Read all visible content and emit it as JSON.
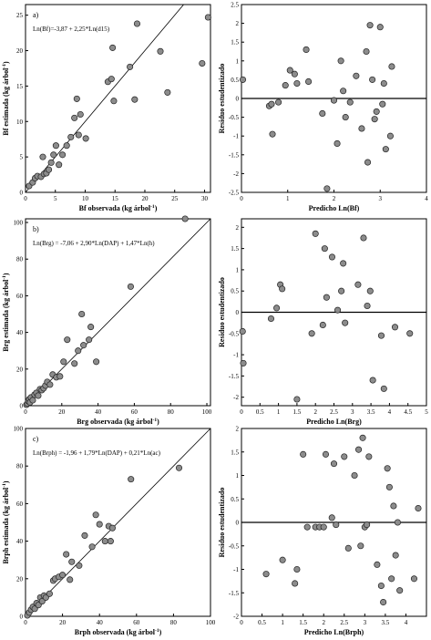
{
  "chart_data": [
    {
      "type": "scatter",
      "panel": "a)",
      "equation": "Ln(Bf)=-3,87 + 2,25*Ln(d15)",
      "xlabel": "Bf observada (kg árbol",
      "ylabel": "Bf estimada (kg árbol",
      "unit_exp": "-1",
      "xlim": [
        0,
        31
      ],
      "ylim": [
        0,
        26.5
      ],
      "xticks": [
        0,
        5,
        10,
        15,
        20,
        25,
        30
      ],
      "yticks": [
        0,
        5,
        10,
        15,
        20,
        25
      ],
      "identity_line": true,
      "points": [
        [
          0.6,
          0.9
        ],
        [
          1.2,
          1.4
        ],
        [
          1.6,
          2.0
        ],
        [
          2.0,
          2.3
        ],
        [
          2.6,
          2.2
        ],
        [
          2.9,
          5.0
        ],
        [
          3.1,
          2.6
        ],
        [
          3.5,
          2.7
        ],
        [
          3.9,
          3.2
        ],
        [
          4.3,
          4.2
        ],
        [
          4.7,
          5.3
        ],
        [
          5.1,
          6.6
        ],
        [
          5.6,
          3.9
        ],
        [
          6.2,
          5.3
        ],
        [
          6.9,
          6.6
        ],
        [
          7.6,
          7.8
        ],
        [
          8.2,
          10.5
        ],
        [
          8.6,
          13.2
        ],
        [
          8.9,
          8.1
        ],
        [
          9.2,
          11.0
        ],
        [
          10.1,
          7.6
        ],
        [
          13.8,
          15.6
        ],
        [
          14.4,
          16.0
        ],
        [
          14.6,
          20.4
        ],
        [
          14.8,
          12.9
        ],
        [
          17.5,
          17.7
        ],
        [
          18.3,
          13.1
        ],
        [
          18.7,
          23.8
        ],
        [
          22.6,
          19.9
        ],
        [
          23.8,
          14.1
        ],
        [
          29.6,
          18.2
        ],
        [
          30.6,
          24.7
        ]
      ]
    },
    {
      "type": "scatter",
      "xlabel": "Predicho Ln(Bf)",
      "ylabel": "Residuo estudentizado",
      "xlim": [
        0,
        4
      ],
      "ylim": [
        -2.5,
        2.5
      ],
      "xticks": [
        0,
        1,
        2,
        3,
        4
      ],
      "yticks": [
        -2.5,
        -2,
        -1.5,
        -1,
        -0.5,
        0,
        0.5,
        1,
        1.5,
        2,
        2.5
      ],
      "zero_line": true,
      "points": [
        [
          0.03,
          0.5
        ],
        [
          0.6,
          -0.2
        ],
        [
          0.65,
          -0.15
        ],
        [
          0.67,
          -0.95
        ],
        [
          0.8,
          -0.1
        ],
        [
          0.95,
          0.35
        ],
        [
          1.05,
          0.75
        ],
        [
          1.15,
          0.65
        ],
        [
          1.2,
          0.4
        ],
        [
          1.4,
          1.3
        ],
        [
          1.45,
          0.45
        ],
        [
          1.75,
          -0.4
        ],
        [
          1.85,
          -2.4
        ],
        [
          2.0,
          -0.05
        ],
        [
          2.07,
          -1.2
        ],
        [
          2.15,
          1.0
        ],
        [
          2.2,
          0.2
        ],
        [
          2.25,
          -0.5
        ],
        [
          2.35,
          -0.1
        ],
        [
          2.48,
          0.6
        ],
        [
          2.6,
          -0.8
        ],
        [
          2.7,
          1.25
        ],
        [
          2.73,
          -1.7
        ],
        [
          2.78,
          1.95
        ],
        [
          2.83,
          0.5
        ],
        [
          2.88,
          -0.55
        ],
        [
          2.92,
          -0.35
        ],
        [
          3.0,
          1.9
        ],
        [
          3.05,
          -0.15
        ],
        [
          3.08,
          0.4
        ],
        [
          3.12,
          -1.35
        ],
        [
          3.22,
          -1.0
        ],
        [
          3.25,
          0.85
        ]
      ]
    },
    {
      "type": "scatter",
      "panel": "b)",
      "equation": "Ln(Brg) = -7,06 + 2,90*Ln(DAP) + 1,47*Ln(h)",
      "xlabel": "Brg observada (kg árbol",
      "ylabel": "Brg estimada (kg árbol",
      "unit_exp": "-1",
      "xlim": [
        0,
        102
      ],
      "ylim": [
        0,
        102
      ],
      "xticks": [
        0,
        20,
        40,
        60,
        80,
        100
      ],
      "yticks": [
        0,
        20,
        40,
        60,
        80,
        100
      ],
      "identity_line": true,
      "points": [
        [
          0.5,
          0.5
        ],
        [
          1.0,
          1.2
        ],
        [
          1.5,
          2.5
        ],
        [
          2.0,
          3.5
        ],
        [
          2.5,
          1.8
        ],
        [
          3.0,
          4.5
        ],
        [
          4.0,
          3.0
        ],
        [
          5.0,
          6.0
        ],
        [
          6.0,
          7.0
        ],
        [
          7.0,
          5.5
        ],
        [
          8.0,
          9.0
        ],
        [
          9.0,
          8.5
        ],
        [
          10.0,
          9.5
        ],
        [
          11.0,
          11.0
        ],
        [
          12.0,
          13.0
        ],
        [
          13.5,
          11.5
        ],
        [
          15.0,
          17.0
        ],
        [
          17.0,
          15.5
        ],
        [
          19.0,
          16.0
        ],
        [
          21.0,
          24.0
        ],
        [
          23.0,
          36.0
        ],
        [
          27.0,
          23.0
        ],
        [
          29.0,
          30.0
        ],
        [
          31.0,
          50.0
        ],
        [
          32.0,
          33.0
        ],
        [
          35.0,
          36.0
        ],
        [
          36.0,
          43.0
        ],
        [
          39.0,
          24.0
        ],
        [
          58.0,
          65.0
        ],
        [
          88.0,
          102.0
        ]
      ]
    },
    {
      "type": "scatter",
      "xlabel": "Predicho Ln(Brg)",
      "ylabel": "Residuo estudentizado",
      "xlim": [
        0,
        5
      ],
      "ylim": [
        -2.2,
        2.2
      ],
      "xticks": [
        0,
        0.5,
        1,
        1.5,
        2,
        2.5,
        3,
        3.5,
        4,
        4.5,
        5
      ],
      "yticks": [
        -2,
        -1.5,
        -1,
        -0.5,
        0,
        0.5,
        1,
        1.5,
        2
      ],
      "zero_line": true,
      "points": [
        [
          0.03,
          -0.45
        ],
        [
          0.05,
          -1.2
        ],
        [
          0.8,
          -0.15
        ],
        [
          0.95,
          0.1
        ],
        [
          1.05,
          0.65
        ],
        [
          1.1,
          0.55
        ],
        [
          1.5,
          -2.05
        ],
        [
          1.9,
          -0.5
        ],
        [
          2.0,
          1.85
        ],
        [
          2.2,
          -0.3
        ],
        [
          2.25,
          1.5
        ],
        [
          2.3,
          0.35
        ],
        [
          2.45,
          1.3
        ],
        [
          2.6,
          0.05
        ],
        [
          2.7,
          0.5
        ],
        [
          2.75,
          1.15
        ],
        [
          2.8,
          -0.25
        ],
        [
          3.15,
          0.65
        ],
        [
          3.3,
          1.75
        ],
        [
          3.4,
          0.15
        ],
        [
          3.48,
          0.5
        ],
        [
          3.55,
          -1.6
        ],
        [
          3.78,
          -0.55
        ],
        [
          3.85,
          -1.8
        ],
        [
          4.15,
          -0.35
        ],
        [
          4.55,
          -0.5
        ]
      ]
    },
    {
      "type": "scatter",
      "panel": "c)",
      "equation": "Ln(Brph) = -1,96 + 1,79*Ln(DAP) + 0,21*Ln(ac)",
      "xlabel": "Brph observada (kg árbol",
      "ylabel": "Brph estimada (kg árbol",
      "unit_exp": "-1",
      "xlim": [
        0,
        100
      ],
      "ylim": [
        0,
        100
      ],
      "xticks": [
        0,
        20,
        40,
        60,
        80,
        100
      ],
      "yticks": [
        0,
        20,
        40,
        60,
        80,
        100
      ],
      "identity_line": true,
      "points": [
        [
          1.0,
          0.5
        ],
        [
          2.0,
          2.0
        ],
        [
          3.0,
          3.5
        ],
        [
          4.0,
          5.0
        ],
        [
          5.0,
          4.0
        ],
        [
          6.0,
          7.0
        ],
        [
          7.0,
          6.0
        ],
        [
          8.0,
          10.0
        ],
        [
          9.0,
          8.0
        ],
        [
          10.0,
          11.0
        ],
        [
          11.0,
          10.0
        ],
        [
          13.0,
          12.0
        ],
        [
          15.0,
          19.0
        ],
        [
          16.0,
          20.0
        ],
        [
          18.0,
          21.0
        ],
        [
          20.0,
          22.0
        ],
        [
          22.0,
          33.0
        ],
        [
          24.0,
          19.5
        ],
        [
          25.0,
          29.0
        ],
        [
          29.0,
          27.0
        ],
        [
          32.0,
          43.0
        ],
        [
          36.0,
          37.0
        ],
        [
          38.0,
          54.0
        ],
        [
          40.0,
          49.0
        ],
        [
          43.0,
          40.0
        ],
        [
          45.0,
          48.0
        ],
        [
          46.0,
          40.0
        ],
        [
          47.0,
          47.0
        ],
        [
          57.0,
          73.0
        ],
        [
          83.0,
          79.0
        ]
      ]
    },
    {
      "type": "scatter",
      "xlabel": "Predicho Ln(Brph)",
      "ylabel": "Residuo estudentizado",
      "xlim": [
        0,
        4.5
      ],
      "ylim": [
        -2.0,
        2.0
      ],
      "xticks": [
        0,
        0.5,
        1,
        1.5,
        2,
        2.5,
        3,
        3.5,
        4
      ],
      "yticks": [
        -2,
        -1.5,
        -1,
        -0.5,
        0,
        0.5,
        1,
        1.5,
        2
      ],
      "zero_line": true,
      "points": [
        [
          0.6,
          -1.1
        ],
        [
          1.0,
          -0.8
        ],
        [
          1.3,
          -1.3
        ],
        [
          1.35,
          -1.0
        ],
        [
          1.5,
          1.45
        ],
        [
          1.6,
          -0.1
        ],
        [
          1.8,
          -0.1
        ],
        [
          1.9,
          -0.1
        ],
        [
          2.0,
          -0.1
        ],
        [
          2.05,
          1.45
        ],
        [
          2.2,
          0.1
        ],
        [
          2.25,
          1.25
        ],
        [
          2.3,
          -0.05
        ],
        [
          2.5,
          1.4
        ],
        [
          2.6,
          -0.55
        ],
        [
          2.75,
          1.0
        ],
        [
          2.85,
          1.55
        ],
        [
          2.9,
          -0.5
        ],
        [
          2.95,
          1.8
        ],
        [
          3.0,
          -0.1
        ],
        [
          3.05,
          -0.05
        ],
        [
          3.1,
          1.4
        ],
        [
          3.3,
          -0.9
        ],
        [
          3.4,
          -1.35
        ],
        [
          3.45,
          -1.7
        ],
        [
          3.55,
          1.15
        ],
        [
          3.6,
          0.75
        ],
        [
          3.65,
          -1.2
        ],
        [
          3.7,
          0.35
        ],
        [
          3.75,
          -0.7
        ],
        [
          3.8,
          0.0
        ],
        [
          3.85,
          -1.45
        ],
        [
          4.2,
          -1.2
        ],
        [
          4.3,
          0.3
        ]
      ]
    }
  ]
}
